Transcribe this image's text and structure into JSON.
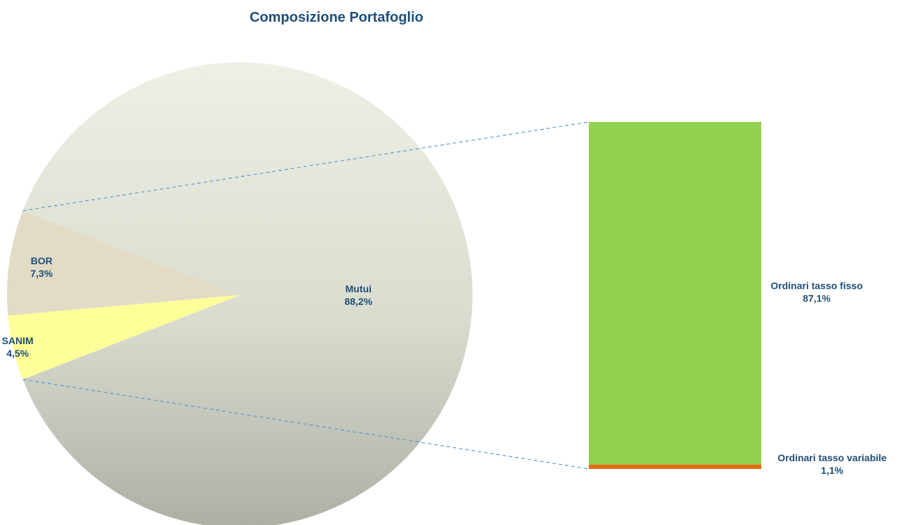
{
  "chart_data": {
    "type": "pie",
    "subtype": "bar-of-pie",
    "title": "Composizione Portafoglio",
    "pie": {
      "slices": [
        {
          "label": "Mutui",
          "value": 88.2,
          "value_label": "88,2%",
          "color": "#dfe1d5"
        },
        {
          "label": "SANIM",
          "value": 4.5,
          "value_label": "4,5%",
          "color": "#ffff99"
        },
        {
          "label": "BOR",
          "value": 7.3,
          "value_label": "7,3%",
          "color": "#e2dcc6"
        }
      ]
    },
    "bar_breakdown": {
      "of_slice": "Mutui",
      "segments": [
        {
          "label": "Ordinari tasso fisso",
          "value": 87.1,
          "value_label": "87,1%",
          "color": "#92d050"
        },
        {
          "label": "Ordinari tasso variabile",
          "value": 1.1,
          "value_label": "1,1%",
          "color": "#e36c0a"
        }
      ]
    },
    "label_color": "#1f4e79",
    "connector_color": "#5b9bd5",
    "legend": "none"
  }
}
